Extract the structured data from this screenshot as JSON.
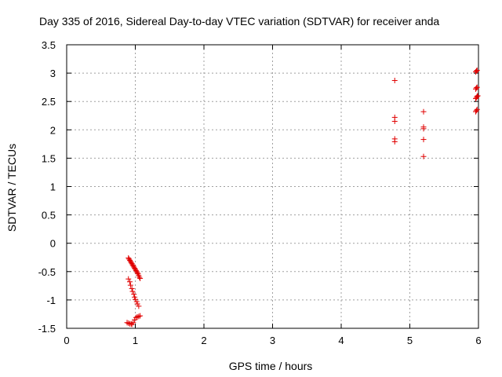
{
  "chart_data": {
    "type": "scatter",
    "title": "Day 335 of 2016, Sidereal Day-to-day VTEC variation (SDTVAR) for receiver anda",
    "xlabel": "GPS time / hours",
    "ylabel": "SDTVAR / TECUs",
    "xlim": [
      0,
      6
    ],
    "ylim": [
      -1.5,
      3.5
    ],
    "xticks": [
      "0",
      "1",
      "2",
      "3",
      "4",
      "5",
      "6"
    ],
    "yticks": [
      "-1.5",
      "-1",
      "-0.5",
      "0",
      "0.5",
      "1",
      "1.5",
      "2",
      "2.5",
      "3",
      "3.5"
    ],
    "grid": true,
    "marker": "+",
    "series": [
      {
        "name": "SDTVAR",
        "color": "#e00000",
        "points": [
          [
            0.9,
            -0.26
          ],
          [
            0.91,
            -0.28
          ],
          [
            0.92,
            -0.3
          ],
          [
            0.93,
            -0.32
          ],
          [
            0.94,
            -0.34
          ],
          [
            0.95,
            -0.36
          ],
          [
            0.96,
            -0.38
          ],
          [
            0.97,
            -0.4
          ],
          [
            0.98,
            -0.42
          ],
          [
            0.99,
            -0.44
          ],
          [
            1.0,
            -0.46
          ],
          [
            1.01,
            -0.48
          ],
          [
            1.02,
            -0.5
          ],
          [
            1.03,
            -0.52
          ],
          [
            1.04,
            -0.54
          ],
          [
            1.05,
            -0.57
          ],
          [
            1.06,
            -0.6
          ],
          [
            1.07,
            -0.62
          ],
          [
            0.9,
            -0.63
          ],
          [
            0.92,
            -0.68
          ],
          [
            0.93,
            -0.74
          ],
          [
            0.95,
            -0.8
          ],
          [
            0.96,
            -0.85
          ],
          [
            0.98,
            -0.9
          ],
          [
            0.99,
            -0.95
          ],
          [
            1.0,
            -0.99
          ],
          [
            1.02,
            -1.03
          ],
          [
            1.03,
            -1.07
          ],
          [
            1.05,
            -1.11
          ],
          [
            0.88,
            -1.4
          ],
          [
            0.9,
            -1.41
          ],
          [
            0.92,
            -1.42
          ],
          [
            0.94,
            -1.42
          ],
          [
            0.95,
            -1.43
          ],
          [
            0.97,
            -1.4
          ],
          [
            0.99,
            -1.35
          ],
          [
            1.01,
            -1.31
          ],
          [
            1.03,
            -1.3
          ],
          [
            1.05,
            -1.29
          ],
          [
            1.07,
            -1.28
          ],
          [
            4.78,
            2.87
          ],
          [
            4.78,
            2.22
          ],
          [
            4.78,
            2.15
          ],
          [
            4.78,
            1.84
          ],
          [
            4.78,
            1.79
          ],
          [
            5.2,
            2.32
          ],
          [
            5.2,
            2.05
          ],
          [
            5.2,
            2.02
          ],
          [
            5.2,
            1.83
          ],
          [
            5.2,
            1.53
          ],
          [
            5.96,
            3.02
          ],
          [
            5.97,
            3.04
          ],
          [
            5.98,
            3.05
          ],
          [
            5.96,
            2.72
          ],
          [
            5.97,
            2.74
          ],
          [
            5.98,
            2.75
          ],
          [
            5.96,
            2.55
          ],
          [
            5.97,
            2.57
          ],
          [
            5.98,
            2.59
          ],
          [
            5.99,
            2.6
          ],
          [
            5.96,
            2.32
          ],
          [
            5.97,
            2.34
          ],
          [
            5.98,
            2.36
          ]
        ]
      }
    ]
  }
}
